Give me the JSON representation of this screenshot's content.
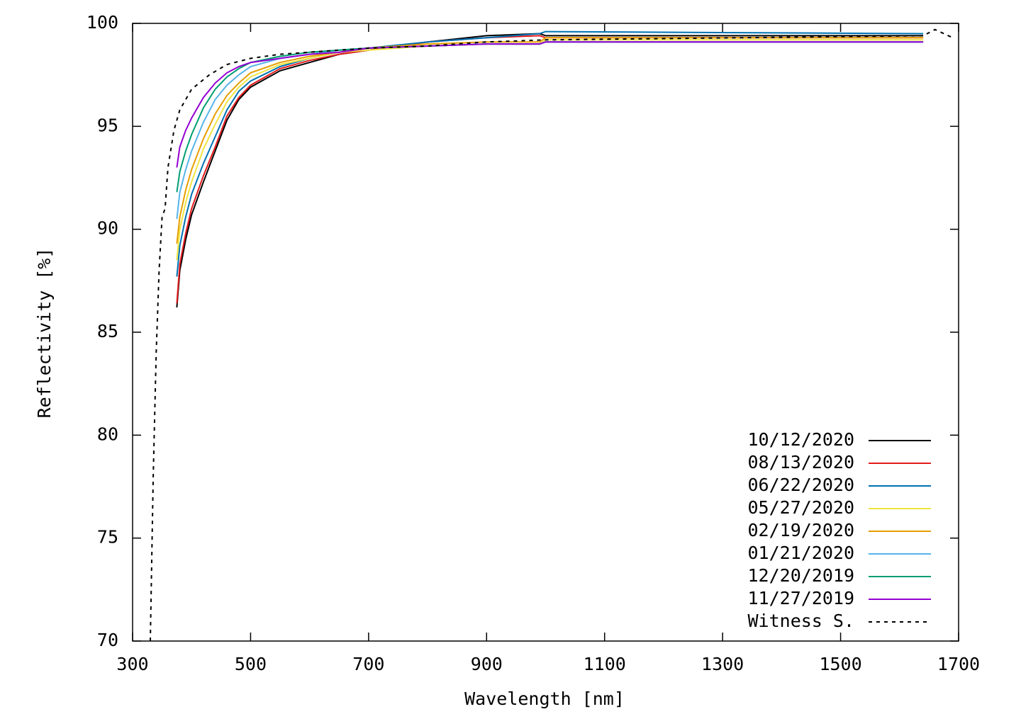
{
  "chart_data": {
    "type": "line",
    "xlabel": "Wavelength [nm]",
    "ylabel": "Reflectivity [%]",
    "xlim": [
      300,
      1700
    ],
    "xticks": [
      300,
      500,
      700,
      900,
      1100,
      1300,
      1500,
      1700
    ],
    "ylim": [
      70,
      100
    ],
    "yticks": [
      70,
      75,
      80,
      85,
      90,
      95,
      100
    ],
    "legend": "lower right",
    "series": [
      {
        "name": "10/12/2020",
        "color": "#000000",
        "dash": false,
        "x": [
          375,
          380,
          390,
          400,
          420,
          440,
          460,
          480,
          500,
          550,
          600,
          650,
          700,
          800,
          900,
          990,
          1000,
          1640
        ],
        "values": [
          86.2,
          88,
          89.5,
          90.7,
          92.3,
          93.8,
          95.3,
          96.3,
          96.9,
          97.7,
          98.1,
          98.5,
          98.7,
          99.1,
          99.4,
          99.5,
          99.4,
          99.4
        ]
      },
      {
        "name": "08/13/2020",
        "color": "#e41a1c",
        "dash": false,
        "x": [
          375,
          380,
          390,
          400,
          420,
          440,
          460,
          480,
          500,
          550,
          600,
          650,
          700,
          800,
          900,
          990,
          1000,
          1640
        ],
        "values": [
          86.4,
          88.3,
          89.8,
          91.0,
          92.6,
          94.0,
          95.5,
          96.4,
          97.0,
          97.8,
          98.2,
          98.5,
          98.7,
          99.1,
          99.3,
          99.4,
          99.3,
          99.3
        ]
      },
      {
        "name": "06/22/2020",
        "color": "#0072b2",
        "dash": false,
        "x": [
          375,
          380,
          390,
          400,
          420,
          440,
          460,
          480,
          500,
          550,
          600,
          650,
          700,
          800,
          900,
          990,
          1000,
          1640
        ],
        "values": [
          87.7,
          89.2,
          90.6,
          91.7,
          93.2,
          94.5,
          95.8,
          96.7,
          97.2,
          97.9,
          98.3,
          98.6,
          98.8,
          99.1,
          99.3,
          99.5,
          99.6,
          99.5
        ]
      },
      {
        "name": "05/27/2020",
        "color": "#f0e442",
        "dash": false,
        "x": [
          375,
          380,
          390,
          400,
          420,
          440,
          460,
          480,
          500,
          550,
          600,
          650,
          700,
          800,
          900,
          990,
          1000,
          1640
        ],
        "values": [
          88.5,
          90,
          91.3,
          92.3,
          93.9,
          95.1,
          96.2,
          96.9,
          97.4,
          98.0,
          98.3,
          98.6,
          98.7,
          98.9,
          99.0,
          99.0,
          99.2,
          99.2
        ]
      },
      {
        "name": "02/19/2020",
        "color": "#e69f00",
        "dash": false,
        "x": [
          375,
          380,
          390,
          400,
          420,
          440,
          460,
          480,
          500,
          550,
          600,
          650,
          700,
          800,
          900,
          990,
          1000,
          1640
        ],
        "values": [
          89.3,
          90.6,
          91.9,
          92.9,
          94.4,
          95.6,
          96.5,
          97.1,
          97.6,
          98.1,
          98.4,
          98.6,
          98.8,
          99.0,
          99.1,
          99.1,
          99.3,
          99.3
        ]
      },
      {
        "name": "01/21/2020",
        "color": "#56b4e9",
        "dash": false,
        "x": [
          375,
          380,
          390,
          400,
          420,
          440,
          460,
          480,
          500,
          550,
          600,
          650,
          700,
          800,
          900,
          990,
          1000,
          1640
        ],
        "values": [
          90.5,
          91.8,
          92.9,
          93.8,
          95.2,
          96.3,
          97.0,
          97.5,
          97.9,
          98.3,
          98.5,
          98.7,
          98.8,
          98.9,
          99.0,
          99.0,
          99.1,
          99.1
        ]
      },
      {
        "name": "12/20/2019",
        "color": "#009e73",
        "dash": false,
        "x": [
          375,
          380,
          390,
          400,
          420,
          440,
          460,
          480,
          500,
          550,
          600,
          650,
          700,
          800,
          900,
          990,
          1000,
          1640
        ],
        "values": [
          91.8,
          92.8,
          93.8,
          94.6,
          95.9,
          96.8,
          97.4,
          97.8,
          98.1,
          98.4,
          98.6,
          98.7,
          98.8,
          98.9,
          99.0,
          99.0,
          99.1,
          99.1
        ]
      },
      {
        "name": "11/27/2019",
        "color": "#9400d3",
        "dash": false,
        "x": [
          375,
          380,
          390,
          400,
          420,
          440,
          460,
          480,
          500,
          550,
          600,
          650,
          700,
          800,
          900,
          990,
          1000,
          1640
        ],
        "values": [
          93.0,
          94.0,
          94.8,
          95.4,
          96.4,
          97.1,
          97.6,
          97.9,
          98.1,
          98.3,
          98.5,
          98.6,
          98.8,
          98.9,
          99.0,
          99.0,
          99.1,
          99.1
        ]
      },
      {
        "name": "Witness S.",
        "color": "#000000",
        "dash": true,
        "x": [
          330,
          335,
          340,
          345,
          350,
          355,
          360,
          370,
          380,
          400,
          430,
          460,
          500,
          550,
          600,
          700,
          800,
          900,
          1000,
          1640,
          1660,
          1690
        ],
        "values": [
          70,
          78,
          84,
          88,
          90.6,
          91,
          93,
          94.8,
          95.8,
          96.8,
          97.5,
          98,
          98.3,
          98.5,
          98.6,
          98.8,
          98.9,
          99.1,
          99.2,
          99.4,
          99.7,
          99.3
        ]
      }
    ]
  }
}
